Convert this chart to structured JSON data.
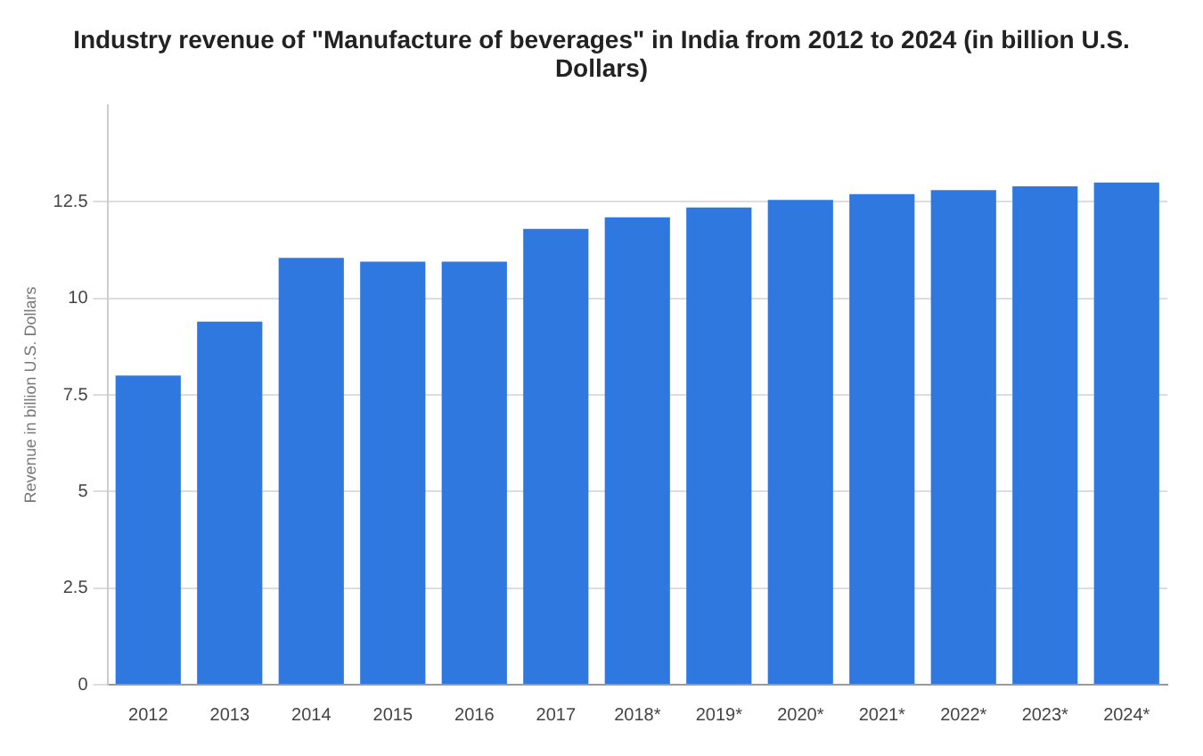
{
  "chart_data": {
    "type": "bar",
    "title": "Industry revenue of \"Manufacture of beverages\" in India from 2012 to 2024 (in billion U.S. Dollars)",
    "ylabel": "Revenue in billion U.S. Dollars",
    "categories": [
      "2012",
      "2013",
      "2014",
      "2015",
      "2016",
      "2017",
      "2018*",
      "2019*",
      "2020*",
      "2021*",
      "2022*",
      "2023*",
      "2024*"
    ],
    "values": [
      8.0,
      9.4,
      11.05,
      10.95,
      10.95,
      11.8,
      12.1,
      12.35,
      12.55,
      12.7,
      12.8,
      12.9,
      13.0
    ],
    "color": "#2f78e0",
    "ylim": [
      0,
      15
    ],
    "yticks": [
      0,
      2.5,
      5,
      7.5,
      10,
      12.5
    ],
    "grid": "y"
  }
}
